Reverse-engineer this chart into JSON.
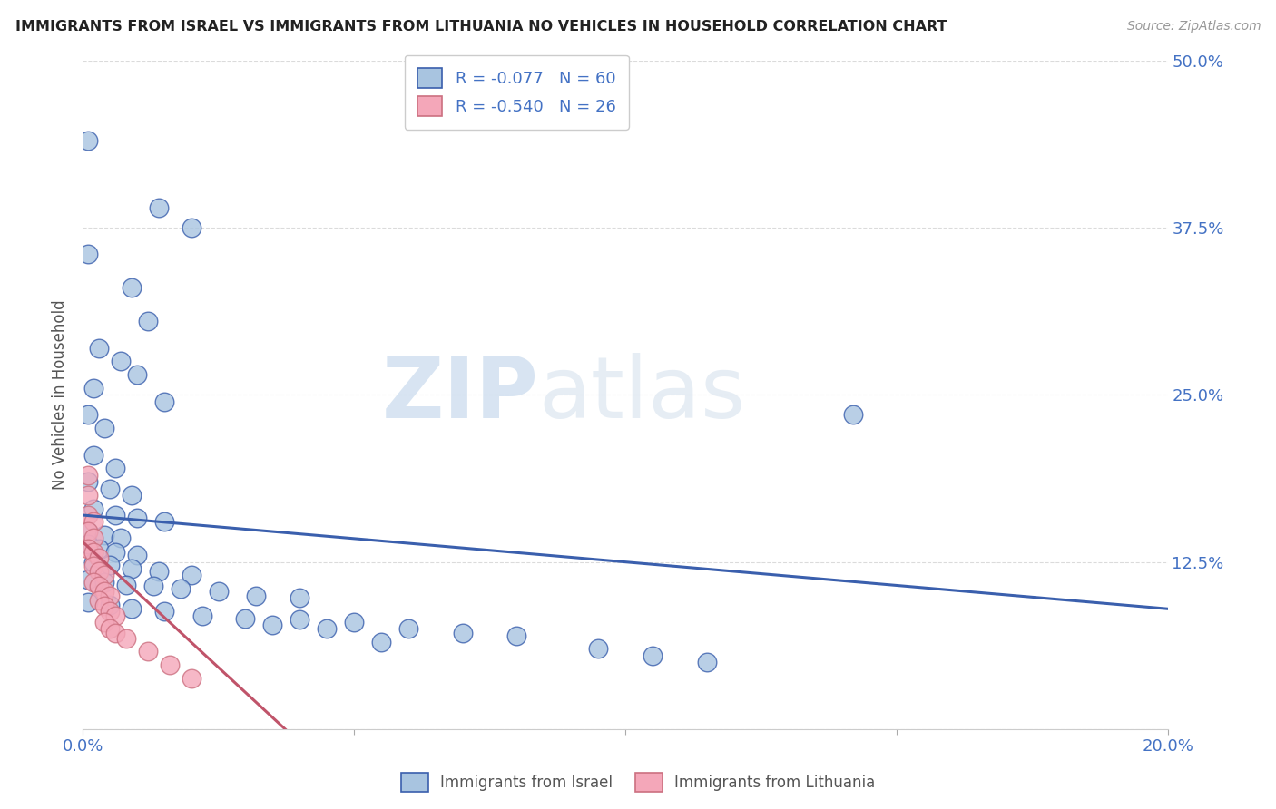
{
  "title": "IMMIGRANTS FROM ISRAEL VS IMMIGRANTS FROM LITHUANIA NO VEHICLES IN HOUSEHOLD CORRELATION CHART",
  "source": "Source: ZipAtlas.com",
  "ylabel": "No Vehicles in Household",
  "legend_label1": "Immigrants from Israel",
  "legend_label2": "Immigrants from Lithuania",
  "R1": -0.077,
  "N1": 60,
  "R2": -0.54,
  "N2": 26,
  "color_israel": "#a8c4e0",
  "color_lithuania": "#f4a7b9",
  "color_israel_line": "#3a5fad",
  "color_lithuania_line": "#c0546a",
  "xlim": [
    0.0,
    0.2
  ],
  "ylim": [
    0.0,
    0.5
  ],
  "xticks": [
    0.0,
    0.05,
    0.1,
    0.15,
    0.2
  ],
  "yticks": [
    0.0,
    0.125,
    0.25,
    0.375,
    0.5
  ],
  "xtick_labels": [
    "0.0%",
    "",
    "",
    "",
    "20.0%"
  ],
  "ytick_labels": [
    "",
    "12.5%",
    "25.0%",
    "37.5%",
    "50.0%"
  ],
  "watermark_zip": "ZIP",
  "watermark_atlas": "atlas",
  "israel_points": [
    [
      0.001,
      0.44
    ],
    [
      0.014,
      0.39
    ],
    [
      0.02,
      0.375
    ],
    [
      0.001,
      0.355
    ],
    [
      0.009,
      0.33
    ],
    [
      0.012,
      0.305
    ],
    [
      0.003,
      0.285
    ],
    [
      0.007,
      0.275
    ],
    [
      0.01,
      0.265
    ],
    [
      0.002,
      0.255
    ],
    [
      0.015,
      0.245
    ],
    [
      0.001,
      0.235
    ],
    [
      0.004,
      0.225
    ],
    [
      0.142,
      0.235
    ],
    [
      0.002,
      0.205
    ],
    [
      0.006,
      0.195
    ],
    [
      0.001,
      0.185
    ],
    [
      0.005,
      0.18
    ],
    [
      0.009,
      0.175
    ],
    [
      0.002,
      0.165
    ],
    [
      0.006,
      0.16
    ],
    [
      0.01,
      0.158
    ],
    [
      0.015,
      0.155
    ],
    [
      0.001,
      0.148
    ],
    [
      0.004,
      0.145
    ],
    [
      0.007,
      0.143
    ],
    [
      0.001,
      0.138
    ],
    [
      0.003,
      0.135
    ],
    [
      0.006,
      0.132
    ],
    [
      0.01,
      0.13
    ],
    [
      0.002,
      0.125
    ],
    [
      0.005,
      0.123
    ],
    [
      0.009,
      0.12
    ],
    [
      0.014,
      0.118
    ],
    [
      0.02,
      0.115
    ],
    [
      0.001,
      0.112
    ],
    [
      0.004,
      0.11
    ],
    [
      0.008,
      0.108
    ],
    [
      0.013,
      0.107
    ],
    [
      0.018,
      0.105
    ],
    [
      0.025,
      0.103
    ],
    [
      0.032,
      0.1
    ],
    [
      0.04,
      0.098
    ],
    [
      0.001,
      0.095
    ],
    [
      0.005,
      0.093
    ],
    [
      0.009,
      0.09
    ],
    [
      0.015,
      0.088
    ],
    [
      0.022,
      0.085
    ],
    [
      0.03,
      0.083
    ],
    [
      0.04,
      0.082
    ],
    [
      0.05,
      0.08
    ],
    [
      0.035,
      0.078
    ],
    [
      0.045,
      0.075
    ],
    [
      0.06,
      0.075
    ],
    [
      0.07,
      0.072
    ],
    [
      0.08,
      0.07
    ],
    [
      0.055,
      0.065
    ],
    [
      0.095,
      0.06
    ],
    [
      0.105,
      0.055
    ],
    [
      0.115,
      0.05
    ]
  ],
  "lithuania_points": [
    [
      0.001,
      0.19
    ],
    [
      0.001,
      0.175
    ],
    [
      0.001,
      0.16
    ],
    [
      0.002,
      0.155
    ],
    [
      0.001,
      0.148
    ],
    [
      0.002,
      0.143
    ],
    [
      0.001,
      0.135
    ],
    [
      0.002,
      0.132
    ],
    [
      0.003,
      0.128
    ],
    [
      0.002,
      0.122
    ],
    [
      0.003,
      0.118
    ],
    [
      0.004,
      0.115
    ],
    [
      0.002,
      0.11
    ],
    [
      0.003,
      0.107
    ],
    [
      0.004,
      0.103
    ],
    [
      0.005,
      0.1
    ],
    [
      0.003,
      0.096
    ],
    [
      0.004,
      0.092
    ],
    [
      0.005,
      0.088
    ],
    [
      0.006,
      0.085
    ],
    [
      0.004,
      0.08
    ],
    [
      0.005,
      0.075
    ],
    [
      0.006,
      0.072
    ],
    [
      0.008,
      0.068
    ],
    [
      0.012,
      0.058
    ],
    [
      0.016,
      0.048
    ],
    [
      0.02,
      0.038
    ]
  ],
  "israel_trendline_x": [
    0.0,
    0.2
  ],
  "israel_trendline_y": [
    0.16,
    0.09
  ],
  "lithuania_trendline_x": [
    0.0,
    0.04
  ],
  "lithuania_trendline_y": [
    0.14,
    -0.01
  ],
  "background_color": "#ffffff",
  "grid_color": "#cccccc",
  "title_color": "#222222",
  "tick_color": "#4472c4",
  "legend_text_color": "#4472c4"
}
